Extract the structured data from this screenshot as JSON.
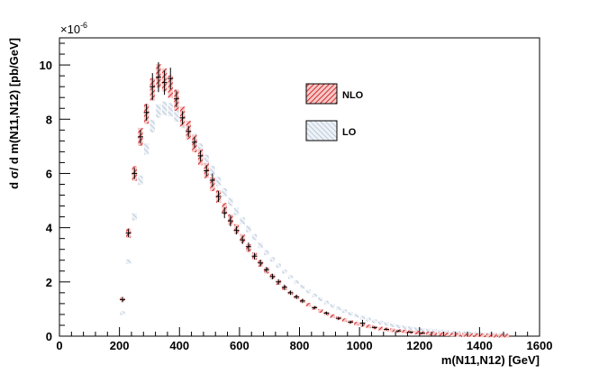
{
  "chart_data": {
    "type": "histogram",
    "title": "",
    "xlabel": "m(N11,N12) [GeV]",
    "ylabel": "d σ/ d m(N11,N12) [pb/GeV]",
    "y_exponent_label": "×10",
    "y_exponent_power": "-6",
    "xlim": [
      0,
      1600
    ],
    "ylim": [
      0,
      11
    ],
    "x_ticks": [
      0,
      200,
      400,
      600,
      800,
      1000,
      1200,
      1400,
      1600
    ],
    "y_ticks": [
      0,
      2,
      4,
      6,
      8,
      10
    ],
    "bin_width": 20,
    "legend_placement": "upper-middle",
    "series": [
      {
        "name": "NLO",
        "color": "#d62a2a",
        "style": "hatched-red-band",
        "x": [
          200,
          220,
          240,
          260,
          280,
          300,
          320,
          340,
          360,
          380,
          400,
          420,
          440,
          460,
          480,
          500,
          520,
          540,
          560,
          580,
          600,
          620,
          640,
          660,
          680,
          700,
          720,
          740,
          760,
          780,
          800,
          820,
          840,
          860,
          880,
          900,
          920,
          940,
          960,
          980,
          1000,
          1020,
          1040,
          1060,
          1080,
          1100,
          1120,
          1140,
          1160,
          1180,
          1200,
          1220,
          1240,
          1260,
          1280,
          1300,
          1320,
          1340,
          1360,
          1380,
          1400,
          1420,
          1440,
          1460,
          1480
        ],
        "y": [
          1.35,
          3.8,
          6.0,
          7.35,
          8.2,
          9.1,
          9.6,
          9.45,
          9.2,
          8.7,
          8.1,
          7.6,
          7.1,
          6.6,
          6.1,
          5.6,
          5.15,
          4.7,
          4.3,
          3.95,
          3.6,
          3.25,
          2.95,
          2.68,
          2.42,
          2.2,
          1.98,
          1.78,
          1.6,
          1.44,
          1.3,
          1.16,
          1.04,
          0.93,
          0.83,
          0.74,
          0.66,
          0.59,
          0.52,
          0.46,
          0.41,
          0.36,
          0.32,
          0.28,
          0.25,
          0.22,
          0.19,
          0.17,
          0.15,
          0.13,
          0.11,
          0.1,
          0.09,
          0.08,
          0.07,
          0.06,
          0.05,
          0.045,
          0.04,
          0.035,
          0.03,
          0.025,
          0.02,
          0.018,
          0.015
        ]
      },
      {
        "name": "LO",
        "color": "#9fb2c8",
        "style": "hatched-blue-band",
        "x": [
          200,
          220,
          240,
          260,
          280,
          300,
          320,
          340,
          360,
          380,
          400,
          420,
          440,
          460,
          480,
          500,
          520,
          540,
          560,
          580,
          600,
          620,
          640,
          660,
          680,
          700,
          720,
          740,
          760,
          780,
          800,
          820,
          840,
          860,
          880,
          900,
          920,
          940,
          960,
          980,
          1000,
          1020,
          1040,
          1060,
          1080,
          1100,
          1120,
          1140,
          1160,
          1180,
          1200,
          1220,
          1240,
          1260,
          1280,
          1300,
          1320,
          1340,
          1360,
          1380,
          1400,
          1420,
          1440,
          1460,
          1480
        ],
        "y": [
          0.85,
          2.75,
          4.4,
          5.75,
          6.9,
          7.75,
          8.3,
          8.4,
          8.35,
          8.15,
          7.9,
          7.6,
          7.25,
          6.9,
          6.5,
          6.1,
          5.7,
          5.3,
          4.95,
          4.6,
          4.25,
          3.95,
          3.65,
          3.35,
          3.08,
          2.83,
          2.6,
          2.38,
          2.18,
          1.99,
          1.82,
          1.65,
          1.5,
          1.36,
          1.24,
          1.12,
          1.02,
          0.92,
          0.83,
          0.75,
          0.68,
          0.61,
          0.55,
          0.5,
          0.45,
          0.4,
          0.36,
          0.32,
          0.29,
          0.26,
          0.23,
          0.21,
          0.19,
          0.17,
          0.15,
          0.13,
          0.12,
          0.11,
          0.1,
          0.09,
          0.08,
          0.07,
          0.06,
          0.05,
          0.045
        ]
      }
    ],
    "data_points": {
      "x": [
        200,
        220,
        240,
        260,
        280,
        300,
        320,
        340,
        360,
        380,
        400,
        420,
        440,
        460,
        480,
        500,
        520,
        540,
        560,
        580,
        600,
        620,
        640,
        660,
        680,
        700,
        720,
        740,
        760,
        780,
        800,
        840,
        880,
        920,
        960,
        1000,
        1040,
        1080,
        1120,
        1160,
        1200
      ],
      "y": [
        1.35,
        3.8,
        6.0,
        7.35,
        8.25,
        9.2,
        9.55,
        9.35,
        9.5,
        8.75,
        8.05,
        7.55,
        7.15,
        6.65,
        6.1,
        5.75,
        5.15,
        4.55,
        4.25,
        3.9,
        3.55,
        3.3,
        2.95,
        2.7,
        2.45,
        2.2,
        2.0,
        1.8,
        1.6,
        1.45,
        1.3,
        1.05,
        0.85,
        0.66,
        0.52,
        0.48,
        0.32,
        0.25,
        0.19,
        0.15,
        0.11
      ],
      "err": [
        0.1,
        0.15,
        0.2,
        0.25,
        0.3,
        0.5,
        0.55,
        0.45,
        0.4,
        0.3,
        0.25,
        0.2,
        0.2,
        0.2,
        0.2,
        0.25,
        0.2,
        0.2,
        0.2,
        0.15,
        0.15,
        0.15,
        0.12,
        0.12,
        0.1,
        0.1,
        0.1,
        0.1,
        0.08,
        0.08,
        0.08,
        0.06,
        0.06,
        0.05,
        0.05,
        0.12,
        0.04,
        0.04,
        0.03,
        0.03,
        0.03
      ]
    }
  }
}
